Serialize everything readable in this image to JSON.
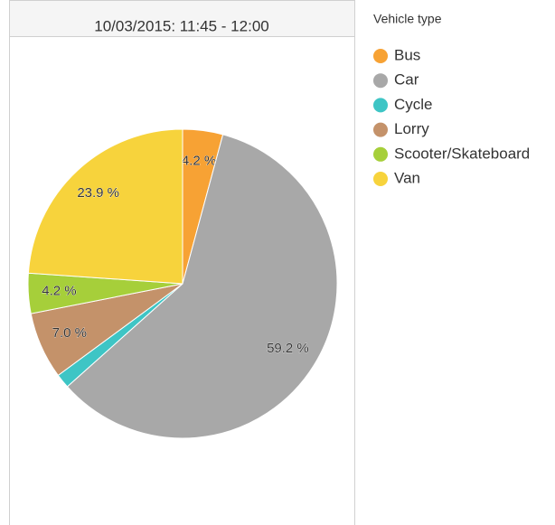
{
  "chart_data": {
    "type": "pie",
    "title": "10/03/2015: 11:45 - 12:00",
    "legend_title": "Vehicle type",
    "categories": [
      "Bus",
      "Car",
      "Cycle",
      "Lorry",
      "Scooter/Skateboard",
      "Van"
    ],
    "values": [
      4.2,
      59.2,
      1.5,
      7.0,
      4.2,
      23.9
    ],
    "value_labels": [
      "4.2 %",
      "59.2 %",
      null,
      "7.0 %",
      "4.2 %",
      "23.9 %"
    ],
    "colors": [
      "#f7a234",
      "#a8a8a8",
      "#3ec5c5",
      "#c4926a",
      "#a6cf3a",
      "#f7d33c"
    ]
  }
}
